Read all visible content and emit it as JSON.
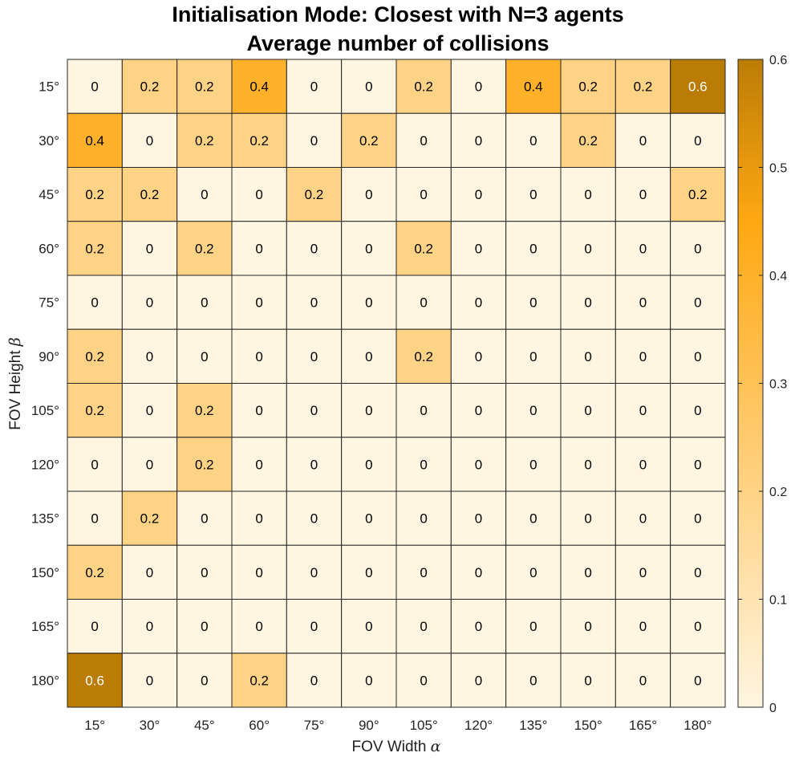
{
  "chart_data": {
    "type": "heatmap",
    "title": "Initialisation Mode: Closest with N=3 agents",
    "subtitle": "Average number of collisions",
    "xlabel": "FOV Width",
    "xlabel_symbol": "α",
    "ylabel": "FOV Height",
    "ylabel_symbol": "β",
    "x_categories": [
      "15°",
      "30°",
      "45°",
      "60°",
      "75°",
      "90°",
      "105°",
      "120°",
      "135°",
      "150°",
      "165°",
      "180°"
    ],
    "y_categories": [
      "15°",
      "30°",
      "45°",
      "60°",
      "75°",
      "90°",
      "105°",
      "120°",
      "135°",
      "150°",
      "165°",
      "180°"
    ],
    "values": [
      [
        0,
        0.2,
        0.2,
        0.4,
        0,
        0,
        0.2,
        0,
        0.4,
        0.2,
        0.2,
        0.6
      ],
      [
        0.4,
        0,
        0.2,
        0.2,
        0,
        0.2,
        0,
        0,
        0,
        0.2,
        0,
        0
      ],
      [
        0.2,
        0.2,
        0,
        0,
        0.2,
        0,
        0,
        0,
        0,
        0,
        0,
        0.2
      ],
      [
        0.2,
        0,
        0.2,
        0,
        0,
        0,
        0.2,
        0,
        0,
        0,
        0,
        0
      ],
      [
        0,
        0,
        0,
        0,
        0,
        0,
        0,
        0,
        0,
        0,
        0,
        0
      ],
      [
        0.2,
        0,
        0,
        0,
        0,
        0,
        0.2,
        0,
        0,
        0,
        0,
        0
      ],
      [
        0.2,
        0,
        0.2,
        0,
        0,
        0,
        0,
        0,
        0,
        0,
        0,
        0
      ],
      [
        0,
        0,
        0.2,
        0,
        0,
        0,
        0,
        0,
        0,
        0,
        0,
        0
      ],
      [
        0,
        0.2,
        0,
        0,
        0,
        0,
        0,
        0,
        0,
        0,
        0,
        0
      ],
      [
        0.2,
        0,
        0,
        0,
        0,
        0,
        0,
        0,
        0,
        0,
        0,
        0
      ],
      [
        0,
        0,
        0,
        0,
        0,
        0,
        0,
        0,
        0,
        0,
        0,
        0
      ],
      [
        0.6,
        0,
        0,
        0.2,
        0,
        0,
        0,
        0,
        0,
        0,
        0,
        0
      ]
    ],
    "colorbar": {
      "range": [
        0,
        0.6
      ],
      "ticks": [
        "0",
        "0.1",
        "0.2",
        "0.3",
        "0.4",
        "0.5",
        "0.6"
      ],
      "colors": {
        "low": "#fff5e1",
        "mid": "#ffa812",
        "high": "#bb7c06"
      }
    },
    "grid": true
  }
}
